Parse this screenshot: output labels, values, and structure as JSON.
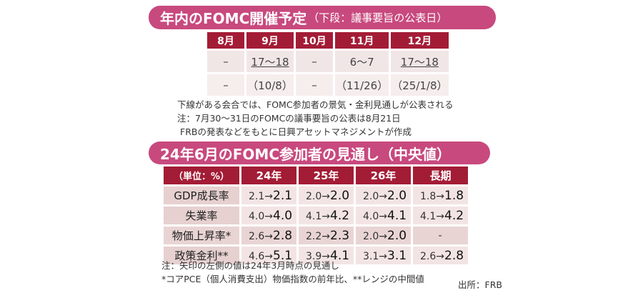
{
  "section1": {
    "title": "年内のFOMC開催予定",
    "subtitle": "（下段：議事要旨の公表日）",
    "columns": [
      "8月",
      "9月",
      "10月",
      "11月",
      "12月"
    ],
    "rows": [
      [
        {
          "text": "–",
          "underline": false
        },
        {
          "text": "17〜18",
          "underline": true
        },
        {
          "text": "–",
          "underline": false
        },
        {
          "text": "6〜7",
          "underline": false
        },
        {
          "text": "17〜18",
          "underline": true
        }
      ],
      [
        {
          "text": "–",
          "underline": false
        },
        {
          "text": "（10/8）",
          "underline": false
        },
        {
          "text": "–",
          "underline": false
        },
        {
          "text": "（11/26）",
          "underline": false
        },
        {
          "text": "（25/1/8）",
          "underline": false
        }
      ]
    ],
    "notes": [
      "下線がある会合では、FOMC参加者の景気・金利見通しが公表される",
      "注：7月30〜31日のFOMCの議事要旨の公表は8月21日",
      "FRBの発表などをもとに日興アセットマネジメントが作成"
    ]
  },
  "section2": {
    "title": "24年6月のFOMC参加者の見通し（中央値）",
    "unit_header": "（単位：%）",
    "columns": [
      "24年",
      "25年",
      "26年",
      "長期"
    ],
    "rows": [
      {
        "label": "GDP成長率",
        "values": [
          {
            "from": "2.1",
            "to": "2.1"
          },
          {
            "from": "2.0",
            "to": "2.0"
          },
          {
            "from": "2.0",
            "to": "2.0"
          },
          {
            "from": "1.8",
            "to": "1.8"
          }
        ]
      },
      {
        "label": "失業率",
        "values": [
          {
            "from": "4.0",
            "to": "4.0"
          },
          {
            "from": "4.1",
            "to": "4.2"
          },
          {
            "from": "4.0",
            "to": "4.1"
          },
          {
            "from": "4.1",
            "to": "4.2"
          }
        ]
      },
      {
        "label": "物価上昇率*",
        "values": [
          {
            "from": "2.6",
            "to": "2.8"
          },
          {
            "from": "2.2",
            "to": "2.3"
          },
          {
            "from": "2.0",
            "to": "2.0"
          },
          {
            "dash": "-"
          }
        ]
      },
      {
        "label": "政策金利**",
        "values": [
          {
            "from": "4.6",
            "to": "5.1"
          },
          {
            "from": "3.9",
            "to": "4.1"
          },
          {
            "from": "3.1",
            "to": "3.1"
          },
          {
            "from": "2.6",
            "to": "2.8"
          }
        ]
      }
    ],
    "arrow": "→",
    "notes": [
      "注：矢印の左側の値は24年3月時点の見通し",
      "*コアPCE（個人消費支出）物価指数の前年比、**レンジの中間値"
    ],
    "source": "出所：FRB"
  },
  "colors": {
    "pill": "#c8497e",
    "header": "#a31c36",
    "cell_light": "#f1e6e6",
    "label_cell": "#e6d0d0"
  }
}
